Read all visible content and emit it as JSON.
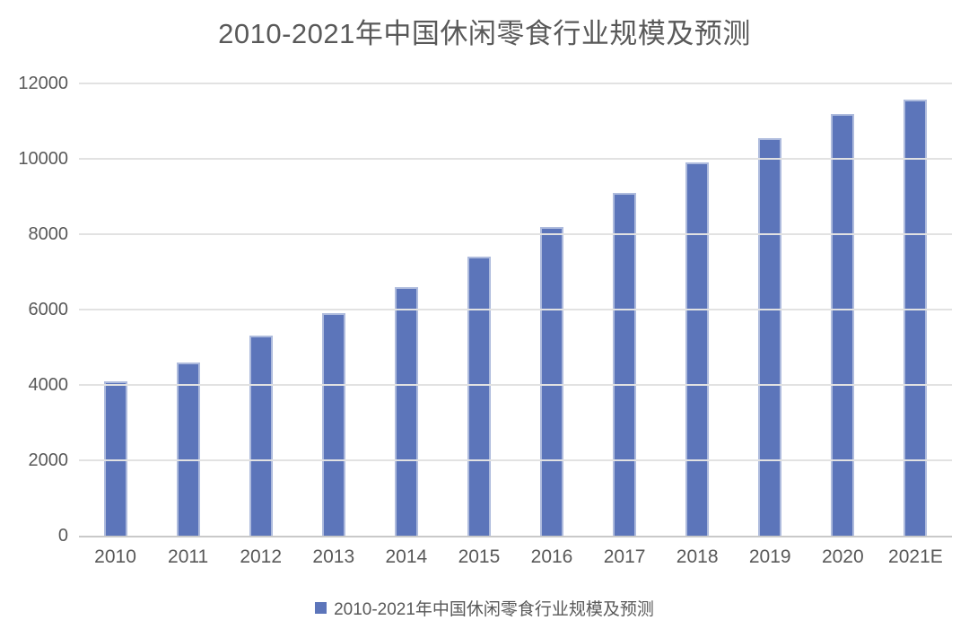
{
  "chart_data": {
    "type": "bar",
    "title": "2010-2021年中国休闲零食行业规模及预测",
    "legend": "2010-2021年中国休闲零食行业规模及预测",
    "legend_position": "bottom",
    "categories": [
      "2010",
      "2011",
      "2012",
      "2013",
      "2014",
      "2015",
      "2016",
      "2017",
      "2018",
      "2019",
      "2020",
      "2021E"
    ],
    "values": [
      4100,
      4600,
      5300,
      5900,
      6600,
      7400,
      8200,
      9100,
      9900,
      10556,
      11200,
      11562
    ],
    "xlabel": "",
    "ylabel": "",
    "ylim": [
      0,
      12000
    ],
    "ytick_step": 2000,
    "yticks": [
      0,
      2000,
      4000,
      6000,
      8000,
      10000,
      12000
    ],
    "grid": true,
    "colors": {
      "bar_fill": "#5c75ba",
      "bar_border": "#aebbdd",
      "gridline": "#e2e2e2",
      "axis_line": "#c9c9c9",
      "text": "#595959"
    }
  }
}
